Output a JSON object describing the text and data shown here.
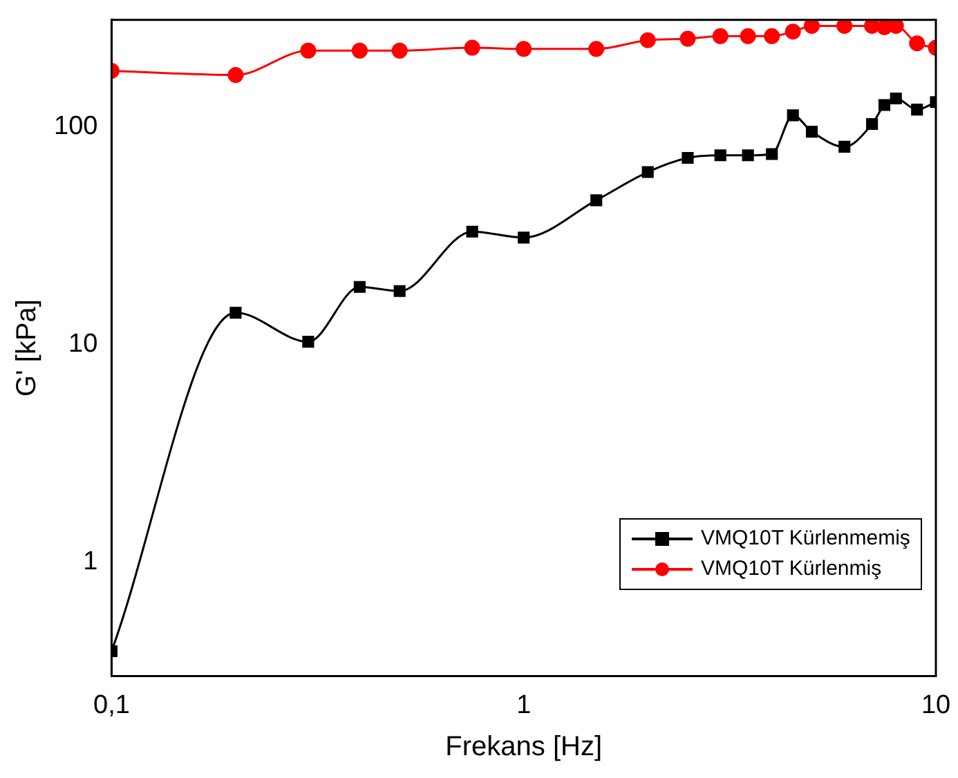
{
  "chart_data": {
    "type": "line",
    "xlabel": "Frekans [Hz]",
    "ylabel": "G' [kPa]",
    "log": "xy",
    "xlim": [
      0.1,
      10
    ],
    "ylim": [
      0.3,
      310
    ],
    "xticks": [
      {
        "value": 0.1,
        "label": "0,1"
      },
      1,
      10
    ],
    "yticks": [
      1,
      10,
      100
    ],
    "x": [
      0.1,
      0.2,
      0.3,
      0.4,
      0.5,
      0.75,
      1,
      1.5,
      2,
      2.5,
      3,
      3.5,
      4,
      4.5,
      5,
      6,
      7,
      7.5,
      8,
      9,
      10
    ],
    "series": [
      {
        "name": "VMQ10T Kürlenmemiş",
        "color": "#000000",
        "marker": "square",
        "values": [
          0.39,
          14,
          10.3,
          18.4,
          17.6,
          33,
          31,
          46,
          62,
          72,
          74,
          74,
          75,
          113,
          95,
          81,
          103,
          126,
          135,
          120,
          130
        ]
      },
      {
        "name": "VMQ10T Kürlenmiş",
        "color": "#ff0000",
        "marker": "circle",
        "values": [
          181,
          173,
          224,
          224,
          224,
          231,
          228,
          228,
          250,
          254,
          261,
          261,
          261,
          274,
          291,
          291,
          291,
          287,
          291,
          242,
          231
        ]
      }
    ],
    "grid": false,
    "legend": "bottom right",
    "line_style": "solid"
  }
}
